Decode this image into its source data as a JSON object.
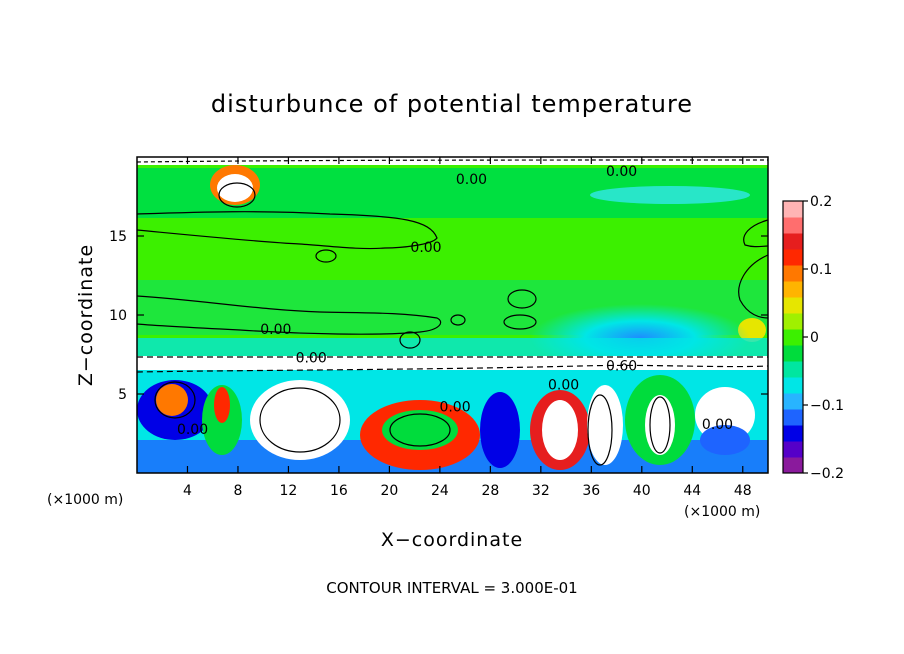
{
  "chart_data": {
    "type": "heatmap",
    "title": "disturbunce of potential temperature",
    "xlabel": "X−coordinate",
    "ylabel": "Z−coordinate",
    "x_unit_left": "(×1000 m)",
    "x_unit_right": "(×1000 m)",
    "xlim": [
      0,
      50
    ],
    "ylim": [
      0,
      20
    ],
    "x_ticks": [
      4,
      8,
      12,
      16,
      20,
      24,
      28,
      32,
      36,
      40,
      44,
      48
    ],
    "x_tick_labels": [
      "4",
      "8",
      "12",
      "16",
      "20",
      "24",
      "28",
      "32",
      "36",
      "40",
      "44",
      "48"
    ],
    "y_ticks": [
      5,
      10,
      15
    ],
    "y_tick_labels": [
      "5",
      "10",
      "15"
    ],
    "colorbar": {
      "range": [
        -0.2,
        0.2
      ],
      "ticks": [
        0.2,
        0.1,
        0,
        -0.1,
        -0.2
      ],
      "tick_labels": [
        "0.2",
        "0.1",
        "0",
        "−0.1",
        "−0.2"
      ],
      "colors": [
        "#8a1a9c",
        "#5500c8",
        "#0000e6",
        "#1e64ff",
        "#28b4ff",
        "#00e6e6",
        "#00e6a0",
        "#00dc3c",
        "#3cf000",
        "#a0f000",
        "#e6e600",
        "#ffb400",
        "#ff7800",
        "#ff2800",
        "#e61e1e",
        "#ff6e6e",
        "#ffb4b4"
      ]
    },
    "contour_labels": [
      {
        "text": "0.00",
        "x": 26.5,
        "y": 18.6
      },
      {
        "text": "0.00",
        "x": 22.9,
        "y": 14.3
      },
      {
        "text": "0.00",
        "x": 11.0,
        "y": 9.1
      },
      {
        "text": "0.00",
        "x": 13.8,
        "y": 7.3
      },
      {
        "text": "0.00",
        "x": 38.4,
        "y": 19.1
      },
      {
        "text": "0.60",
        "x": 38.4,
        "y": 6.8
      },
      {
        "text": "0.00",
        "x": 33.8,
        "y": 5.6
      },
      {
        "text": "0.00",
        "x": 25.2,
        "y": 4.2
      },
      {
        "text": "0.00",
        "x": 4.4,
        "y": 2.8
      },
      {
        "text": "0.00",
        "x": 46.0,
        "y": 3.1
      }
    ],
    "legend": "colorbar right",
    "grid": false
  },
  "footer": {
    "contour_interval": "CONTOUR INTERVAL = 3.000E-01"
  }
}
